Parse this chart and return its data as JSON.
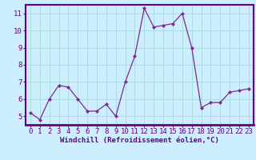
{
  "x": [
    0,
    1,
    2,
    3,
    4,
    5,
    6,
    7,
    8,
    9,
    10,
    11,
    12,
    13,
    14,
    15,
    16,
    17,
    18,
    19,
    20,
    21,
    22,
    23
  ],
  "y": [
    5.2,
    4.8,
    6.0,
    6.8,
    6.7,
    6.0,
    5.3,
    5.3,
    5.7,
    5.0,
    7.0,
    8.5,
    11.3,
    10.2,
    10.3,
    10.4,
    11.0,
    9.0,
    5.5,
    5.8,
    5.8,
    6.4,
    6.5,
    6.6
  ],
  "line_color": "#7B2D8B",
  "marker_color": "#7B2D8B",
  "bg_color": "#cceeff",
  "grid_color": "#aadddd",
  "xlabel": "Windchill (Refroidissement éolien,°C)",
  "xlim": [
    -0.5,
    23.5
  ],
  "ylim": [
    4.5,
    11.5
  ],
  "yticks": [
    5,
    6,
    7,
    8,
    9,
    10,
    11
  ],
  "xticks": [
    0,
    1,
    2,
    3,
    4,
    5,
    6,
    7,
    8,
    9,
    10,
    11,
    12,
    13,
    14,
    15,
    16,
    17,
    18,
    19,
    20,
    21,
    22,
    23
  ],
  "label_fontsize": 6.5,
  "tick_fontsize": 6.5,
  "spine_color": "#660088",
  "text_color": "#660088"
}
